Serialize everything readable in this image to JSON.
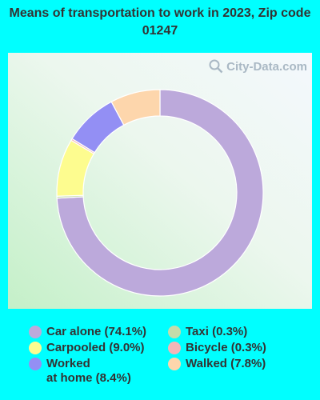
{
  "title": "Means of transportation to work in 2023, Zip code 01247",
  "watermark": "City-Data.com",
  "chart_data": {
    "type": "pie",
    "style": "donut",
    "slices": [
      {
        "label": "Car alone (74.1%)",
        "value": 74.1,
        "color": "#bca9db"
      },
      {
        "label": "Taxi (0.3%)",
        "value": 0.3,
        "color": "#c5dcaa"
      },
      {
        "label": "Carpooled (9.0%)",
        "value": 9.0,
        "color": "#fdfc8f"
      },
      {
        "label": "Bicycle (0.3%)",
        "value": 0.3,
        "color": "#f4b6b8"
      },
      {
        "label": "Worked\nat home (8.4%)",
        "value": 8.4,
        "color": "#938ff4"
      },
      {
        "label": "Walked (7.8%)",
        "value": 7.8,
        "color": "#fdd6ac"
      }
    ]
  }
}
